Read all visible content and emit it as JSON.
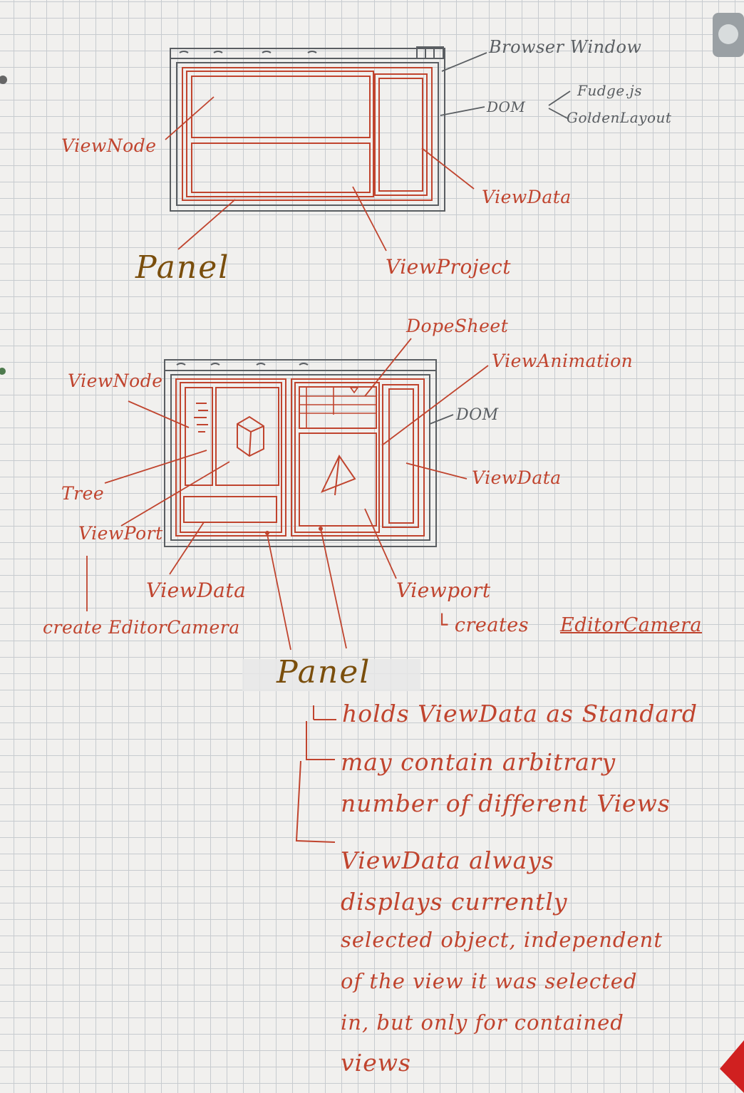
{
  "diagram1": {
    "browser_window": "Browser Window",
    "dom": "DOM",
    "fudge": "Fudge.js",
    "golden_layout": "GoldenLayout",
    "view_node": "ViewNode",
    "view_data": "ViewData",
    "view_project": "ViewProject",
    "panel": "Panel"
  },
  "diagram2": {
    "dope_sheet": "DopeSheet",
    "view_animation": "ViewAnimation",
    "view_node": "ViewNode",
    "dom": "DOM",
    "tree": "Tree",
    "view_data_right": "ViewData",
    "viewport_left": "ViewPort",
    "view_data_bottom": "ViewData",
    "viewport_right": "Viewport",
    "create_editor_camera": "create EditorCamera",
    "creates_prefix": "└ creates",
    "creates_editor_camera": "EditorCamera",
    "panel": "Panel"
  },
  "notes": {
    "note1": "holds ViewData as Standard",
    "note2_line1": "may contain arbitrary",
    "note2_line2": "number of different Views",
    "note3_line1": "ViewData always",
    "note3_line2": "displays currently",
    "note3_line3": "selected object, independent",
    "note3_line4": "of the view it was selected",
    "note3_line5": "in, but only for contained",
    "note3_line6": "views"
  },
  "colors": {
    "red_ink": "#c0442e",
    "pencil": "#5a5e62",
    "panel_brown": "#7a4e0c",
    "grid": "#c7cbcf"
  }
}
